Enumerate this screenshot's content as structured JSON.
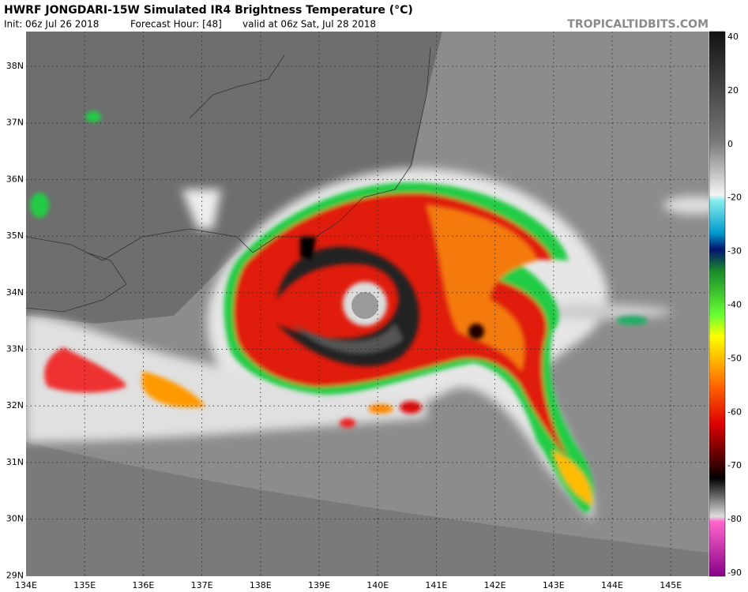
{
  "header": {
    "title": "HWRF JONGDARI-15W Simulated IR4 Brightness Temperature (°C)",
    "init": "Init: 06z Jul 26 2018",
    "forecast_hour": "Forecast Hour: [48]",
    "valid": "valid at 06z Sat, Jul 28 2018",
    "source": "TROPICALTIDBITS.COM"
  },
  "map": {
    "latitude_labels": [
      "38N",
      "37N",
      "36N",
      "35N",
      "34N",
      "33N",
      "32N",
      "31N",
      "30N",
      "29N"
    ],
    "longitude_labels": [
      "134E",
      "135E",
      "136E",
      "137E",
      "138E",
      "139E",
      "140E",
      "141E",
      "142E",
      "143E",
      "144E",
      "145E"
    ]
  },
  "colorbar": {
    "labels": [
      40,
      20,
      0,
      -20,
      -30,
      -40,
      -50,
      -60,
      -70,
      -80,
      -90
    ]
  }
}
